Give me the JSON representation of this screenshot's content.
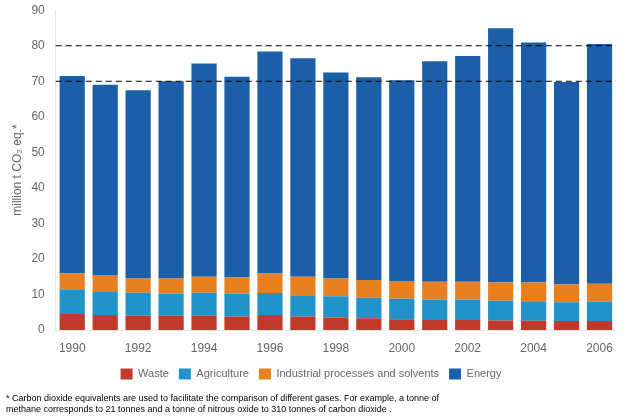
{
  "chart_data": {
    "type": "bar",
    "stacked": true,
    "ylabel": "million t CO₂ eq.*",
    "categories": [
      "1990",
      null,
      "1992",
      null,
      "1994",
      null,
      "1996",
      null,
      "1998",
      null,
      "2000",
      null,
      "2002",
      null,
      "2004",
      null,
      "2006"
    ],
    "series": [
      {
        "name": "Waste",
        "color": "#c0392b",
        "values": [
          4.5,
          4.2,
          4.0,
          4.0,
          4.0,
          3.8,
          4.2,
          3.8,
          3.5,
          3.3,
          3.0,
          2.8,
          2.8,
          2.7,
          2.6,
          2.5,
          2.5
        ]
      },
      {
        "name": "Agriculture",
        "color": "#2193c9",
        "values": [
          7.0,
          6.5,
          6.5,
          6.3,
          6.5,
          6.5,
          6.2,
          6.0,
          6.0,
          5.8,
          5.8,
          5.8,
          5.8,
          5.5,
          5.5,
          5.3,
          5.5
        ]
      },
      {
        "name": "Industrial processes and solvents",
        "color": "#e88020",
        "values": [
          4.5,
          4.8,
          4.0,
          4.2,
          4.5,
          4.5,
          5.5,
          5.2,
          5.0,
          5.0,
          5.0,
          5.0,
          5.0,
          5.2,
          5.3,
          5.0,
          5.0
        ]
      },
      {
        "name": "Energy",
        "color": "#1a5fa8",
        "values": [
          55.5,
          53.5,
          53.0,
          55.5,
          60.0,
          56.5,
          62.5,
          61.5,
          58.0,
          57.0,
          56.5,
          62.0,
          63.5,
          71.5,
          67.5,
          57.0,
          67.5
        ]
      }
    ],
    "ylim": [
      0,
      90
    ],
    "yticks": [
      0,
      10,
      20,
      30,
      40,
      50,
      60,
      70,
      80,
      90
    ],
    "hlines": [
      70,
      80
    ],
    "grid": false,
    "legend": "bottom",
    "footnote": "* Carbon dioxide equivalents are used to facilitate the comparison of different gases. For example, a tonne of\nmethane corresponds to 21 tonnes and a tonne of nitrous oxide to 310 tonnes of carbon dioxide ."
  }
}
